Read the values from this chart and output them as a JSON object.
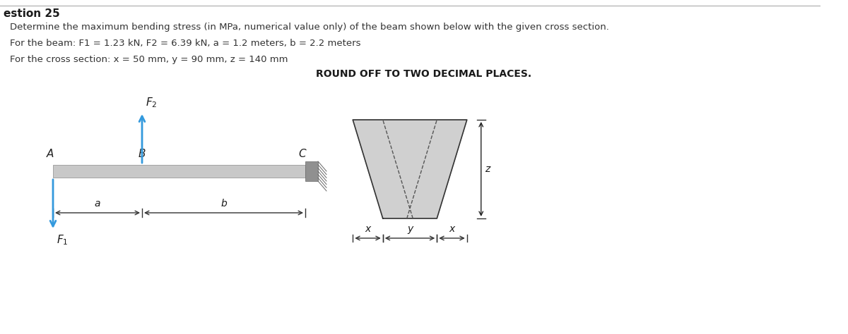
{
  "title": "estion 25",
  "line1": "Determine the maximum bending stress (in MPa, numerical value only) of the beam shown below with the given cross section.",
  "line2": "For the beam: F1 = 1.23 kN, F2 = 6.39 kN, a = 1.2 meters, b = 2.2 meters",
  "line3": "For the cross section: x = 50 mm, y = 90 mm, z = 140 mm",
  "round_off_text": "ROUND OFF TO TWO DECIMAL PLACES.",
  "bg_color": "#ffffff",
  "beam_color": "#c8c8c8",
  "wall_color": "#909090",
  "cross_section_color": "#d0d0d0",
  "arrow_color": "#3399dd",
  "text_color": "#333333"
}
